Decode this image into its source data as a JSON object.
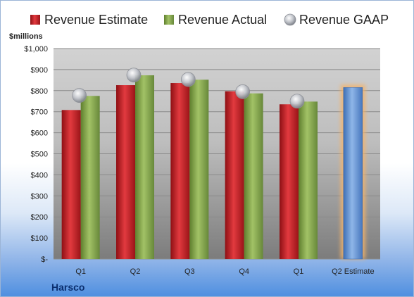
{
  "chart_data": {
    "type": "bar",
    "company": "Harsco",
    "unit_label": "$millions",
    "categories": [
      "Q1",
      "Q2",
      "Q3",
      "Q4",
      "Q1",
      "Q2 Estimate"
    ],
    "y_ticks": [
      "$-",
      "$100",
      "$200",
      "$300",
      "$400",
      "$500",
      "$600",
      "$700",
      "$800",
      "$900",
      "$1,000"
    ],
    "ylim": [
      0,
      1000
    ],
    "grid": true,
    "legend_position": "top",
    "series": [
      {
        "name": "Revenue Estimate",
        "values": [
          708,
          826,
          836,
          797,
          735,
          815
        ],
        "color": "#cc2229"
      },
      {
        "name": "Revenue Actual",
        "values": [
          775,
          873,
          852,
          787,
          748,
          null
        ],
        "color": "#8aac4e"
      },
      {
        "name": "Revenue GAAP",
        "values": [
          777,
          874,
          853,
          795,
          750,
          null
        ],
        "color": "#b9bcc4"
      }
    ],
    "estimate_bar_color": "#6d9ad6",
    "estimate_glow_color": "#f4b36a"
  }
}
